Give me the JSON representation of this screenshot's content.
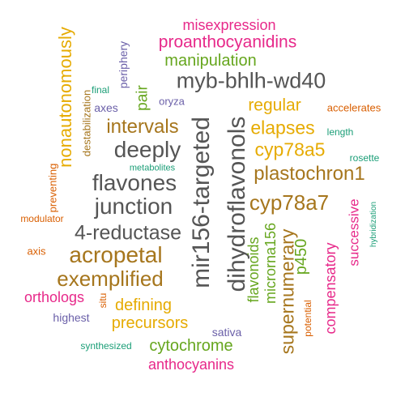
{
  "palette": {
    "purple": "#6a5fa8",
    "orange": "#d95f02",
    "teal": "#1b9e77",
    "magenta": "#e7298a",
    "green": "#66a61e",
    "gold": "#e6ab02",
    "brown": "#a6761d",
    "gray": "#555555"
  },
  "words": [
    {
      "text": "misexpression",
      "color": "#e7298a"
    },
    {
      "text": "nonautonomously",
      "color": "#e6ab02"
    },
    {
      "text": "proanthocyanidins",
      "color": "#e7298a"
    },
    {
      "text": "periphery",
      "color": "#6a5fa8"
    },
    {
      "text": "manipulation",
      "color": "#66a61e"
    },
    {
      "text": "destabilization",
      "color": "#a6761d"
    },
    {
      "text": "final",
      "color": "#1b9e77"
    },
    {
      "text": "pair",
      "color": "#66a61e"
    },
    {
      "text": "myb-bhlh-wd40",
      "color": "#555555"
    },
    {
      "text": "oryza",
      "color": "#6a5fa8"
    },
    {
      "text": "axes",
      "color": "#6a5fa8"
    },
    {
      "text": "regular",
      "color": "#e6ab02"
    },
    {
      "text": "accelerates",
      "color": "#d95f02"
    },
    {
      "text": "intervals",
      "color": "#a6761d"
    },
    {
      "text": "mir156-targeted",
      "color": "#555555"
    },
    {
      "text": "elapses",
      "color": "#e6ab02"
    },
    {
      "text": "length",
      "color": "#1b9e77"
    },
    {
      "text": "dihydroflavonols",
      "color": "#555555"
    },
    {
      "text": "deeply",
      "color": "#555555"
    },
    {
      "text": "cyp78a5",
      "color": "#e6ab02"
    },
    {
      "text": "rosette",
      "color": "#1b9e77"
    },
    {
      "text": "metabolites",
      "color": "#1b9e77"
    },
    {
      "text": "plastochron1",
      "color": "#a6761d"
    },
    {
      "text": "preventing",
      "color": "#d95f02"
    },
    {
      "text": "flavones",
      "color": "#555555"
    },
    {
      "text": "cyp78a7",
      "color": "#a6761d"
    },
    {
      "text": "successive",
      "color": "#e7298a"
    },
    {
      "text": "hybridization",
      "color": "#1b9e77"
    },
    {
      "text": "junction",
      "color": "#555555"
    },
    {
      "text": "modulator",
      "color": "#d95f02"
    },
    {
      "text": "flavonoids",
      "color": "#66a61e"
    },
    {
      "text": "4-reductase",
      "color": "#555555"
    },
    {
      "text": "microrna156",
      "color": "#66a61e"
    },
    {
      "text": "axis",
      "color": "#d95f02"
    },
    {
      "text": "acropetal",
      "color": "#a6761d"
    },
    {
      "text": "p450",
      "color": "#66a61e"
    },
    {
      "text": "supernumerary",
      "color": "#a6761d"
    },
    {
      "text": "compensatory",
      "color": "#e7298a"
    },
    {
      "text": "exemplified",
      "color": "#a6761d"
    },
    {
      "text": "orthologs",
      "color": "#e7298a"
    },
    {
      "text": "situ",
      "color": "#d95f02"
    },
    {
      "text": "defining",
      "color": "#e6ab02"
    },
    {
      "text": "potential",
      "color": "#d95f02"
    },
    {
      "text": "highest",
      "color": "#6a5fa8"
    },
    {
      "text": "precursors",
      "color": "#e6ab02"
    },
    {
      "text": "sativa",
      "color": "#6a5fa8"
    },
    {
      "text": "synthesized",
      "color": "#1b9e77"
    },
    {
      "text": "cytochrome",
      "color": "#66a61e"
    },
    {
      "text": "anthocyanins",
      "color": "#e7298a"
    }
  ]
}
